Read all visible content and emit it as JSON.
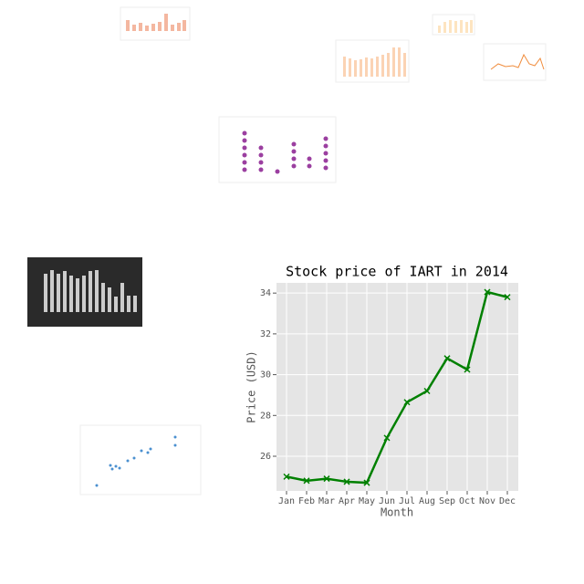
{
  "chart_data": {
    "type": "line",
    "title": "Stock price of IART in 2014",
    "x_label": "Month",
    "y_label": "Price (USD)",
    "categories": [
      "Jan",
      "Feb",
      "Mar",
      "Apr",
      "May",
      "Jun",
      "Jul",
      "Aug",
      "Sep",
      "Oct",
      "Nov",
      "Dec"
    ],
    "series": [
      {
        "name": "IART",
        "color": "#008000",
        "values": [
          25.0,
          24.8,
          24.9,
          24.75,
          24.7,
          26.9,
          28.65,
          29.2,
          30.8,
          30.25,
          34.05,
          33.8
        ]
      }
    ],
    "ylim": [
      24.3,
      34.5
    ],
    "yticks": [
      26,
      28,
      30,
      32,
      34
    ],
    "grid": true
  }
}
